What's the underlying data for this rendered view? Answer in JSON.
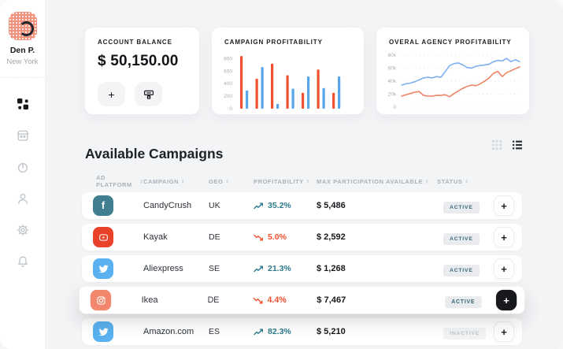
{
  "sidebar": {
    "user": {
      "name": "Den P.",
      "location": "New York"
    },
    "nav_icons": [
      "dashboard-icon",
      "wallet-icon",
      "history-icon",
      "profile-icon",
      "settings-icon",
      "notifications-icon"
    ],
    "active_item": "dashboard"
  },
  "cards": {
    "balance": {
      "title": "ACCOUNT BALANCE",
      "amount": "$ 50,150.00",
      "add_label": "+",
      "withdraw_icon": "atm-withdraw-icon"
    }
  },
  "chart_data": [
    {
      "type": "bar",
      "title": "CAMPAIGN PROFITABILITY",
      "categories": [],
      "series": [
        {
          "name": "series-red",
          "color": "#f0512e",
          "values": [
            840,
            480,
            720,
            535,
            255,
            625,
            255
          ]
        },
        {
          "name": "series-blue",
          "color": "#57a6ea",
          "values": [
            290,
            665,
            75,
            320,
            515,
            330,
            515
          ]
        }
      ],
      "xlabel": "",
      "ylabel": "",
      "ylim": [
        0,
        880
      ],
      "yticks": [
        0,
        200,
        400,
        600,
        800
      ],
      "grid": false,
      "legend": false
    },
    {
      "type": "line",
      "title": "OVERAL AGENCY PROFITABILITY",
      "unit": "thousands",
      "series": [
        {
          "name": "line-blue",
          "color": "#7fb0f0",
          "values": [
            34,
            36,
            37,
            39,
            42,
            45,
            46,
            45,
            47,
            46,
            55,
            64,
            67,
            68,
            65,
            61,
            60,
            63,
            64,
            65,
            66,
            70,
            72,
            71,
            75,
            70,
            73,
            70
          ]
        },
        {
          "name": "line-red",
          "color": "#ef8465",
          "values": [
            17,
            19,
            21,
            23,
            24,
            18,
            17,
            17,
            18,
            18,
            19,
            16,
            21,
            25,
            29,
            32,
            34,
            33,
            36,
            40,
            45,
            52,
            55,
            47,
            53,
            56,
            59,
            62
          ]
        }
      ],
      "xlabel": "",
      "ylabel": "",
      "ylim": [
        0,
        80
      ],
      "yticks": [
        0,
        20,
        40,
        60,
        80
      ],
      "ytick_labels": [
        "0",
        "20k",
        "40k",
        "60k",
        "80k"
      ],
      "grid": true,
      "grid_style": "dotted",
      "legend": false
    }
  ],
  "campaigns": {
    "title": "Available Campaigns",
    "view_toggles": [
      "grid-view-icon",
      "list-view-icon"
    ],
    "active_view": "list",
    "add_label": "+",
    "columns": [
      {
        "label": "AD PLATFORM"
      },
      {
        "label": "CAMPAIGN"
      },
      {
        "label": "GEO"
      },
      {
        "label": "PROFITABILITY"
      },
      {
        "label": "MAX PARTICIPATION AVAILABLE"
      },
      {
        "label": "STATUS"
      }
    ],
    "rows": [
      {
        "platform": "facebook",
        "campaign": "CandyCrush",
        "geo": "UK",
        "trend": "up",
        "profitability": "35.2%",
        "max_participation": "$ 5,486",
        "status": "ACTIVE"
      },
      {
        "platform": "youtube",
        "campaign": "Kayak",
        "geo": "DE",
        "trend": "down",
        "profitability": "5.0%",
        "max_participation": "$ 2,592",
        "status": "ACTIVE"
      },
      {
        "platform": "twitter",
        "campaign": "Aliexpress",
        "geo": "SE",
        "trend": "up",
        "profitability": "21.3%",
        "max_participation": "$ 1,268",
        "status": "ACTIVE"
      },
      {
        "platform": "instagram",
        "campaign": "Ikea",
        "geo": "DE",
        "trend": "down",
        "profitability": "4.4%",
        "max_participation": "$ 7,467",
        "status": "ACTIVE"
      },
      {
        "platform": "twitter",
        "campaign": "Amazon.com",
        "geo": "ES",
        "trend": "up",
        "profitability": "82.3%",
        "max_participation": "$ 5,210",
        "status": "INACTIVE"
      }
    ]
  },
  "colors": {
    "trend_up": "#2d7b8c",
    "trend_down": "#f4512c",
    "facebook": "#417e8f",
    "youtube": "#e8432a",
    "twitter": "#59b2ef",
    "instagram": "#f2876d",
    "badge_active_bg": "#e9ebee",
    "badge_active_text": "#35687a",
    "badge_inactive_bg": "#f2f3f4",
    "badge_inactive_text": "#c0c6cb"
  }
}
